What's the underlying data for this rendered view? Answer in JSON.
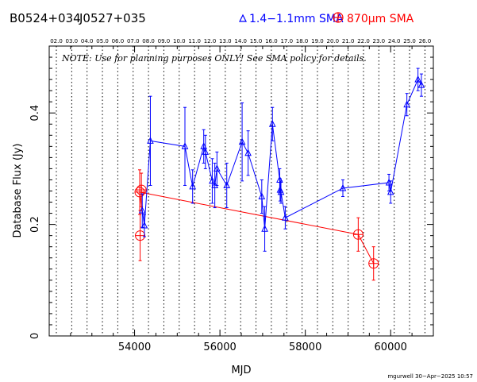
{
  "header": {
    "source_name": "B0524+034",
    "alt_name": "J0527+035",
    "legend_blue": "1.4−1.1mm SMA",
    "legend_red": "870μm SMA"
  },
  "note": "NOTE: Use for planning purposes ONLY!  See SMA policy for details.",
  "credit": "mgurwell 30−Apr−2025 10:57",
  "colors": {
    "blue": "#0000ff",
    "red": "#ff0000",
    "axis": "#000000"
  },
  "chart_data": {
    "type": "scatter",
    "xlabel": "MJD",
    "ylabel": "Database Flux (Jy)",
    "xlim": [
      52000,
      61000
    ],
    "ylim": [
      0,
      0.52
    ],
    "xticks": [
      54000,
      56000,
      58000,
      60000
    ],
    "xtick_labels": [
      "54000",
      "56000",
      "58000",
      "60000"
    ],
    "yticks": [
      0,
      0.2,
      0.4
    ],
    "ytick_labels": [
      "0",
      "0.2",
      "0.4"
    ],
    "top_axis_labels": [
      "02.0",
      "03.0",
      "04.0",
      "05.0",
      "06.0",
      "07.0",
      "08.0",
      "09.0",
      "10.0",
      "11.0",
      "12.0",
      "13.0",
      "14.0",
      "15.0",
      "16.0",
      "17.0",
      "18.0",
      "19.0",
      "20.0",
      "21.0",
      "22.0",
      "23.0",
      "24.0",
      "25.0",
      "26.0"
    ],
    "grid": "dotted vertical lines at each top-axis year",
    "series": [
      {
        "name": "1.4−1.1mm SMA",
        "marker": "triangle",
        "color": "#0000ff",
        "points": [
          {
            "x": 54180,
            "y": 0.225,
            "err": 0.03
          },
          {
            "x": 54230,
            "y": 0.198,
            "err": 0.02
          },
          {
            "x": 54370,
            "y": 0.35,
            "err": 0.08
          },
          {
            "x": 55180,
            "y": 0.34,
            "err": 0.07
          },
          {
            "x": 55360,
            "y": 0.268,
            "err": 0.03
          },
          {
            "x": 55620,
            "y": 0.34,
            "err": 0.03
          },
          {
            "x": 55660,
            "y": 0.33,
            "err": 0.03
          },
          {
            "x": 55820,
            "y": 0.278,
            "err": 0.04
          },
          {
            "x": 55880,
            "y": 0.27,
            "err": 0.04
          },
          {
            "x": 55930,
            "y": 0.3,
            "err": 0.03
          },
          {
            "x": 56160,
            "y": 0.27,
            "err": 0.04
          },
          {
            "x": 56520,
            "y": 0.348,
            "err": 0.07
          },
          {
            "x": 56660,
            "y": 0.328,
            "err": 0.04
          },
          {
            "x": 56980,
            "y": 0.25,
            "err": 0.03
          },
          {
            "x": 57050,
            "y": 0.192,
            "err": 0.04
          },
          {
            "x": 57230,
            "y": 0.38,
            "err": 0.03
          },
          {
            "x": 57400,
            "y": 0.28,
            "err": 0.02
          },
          {
            "x": 57410,
            "y": 0.262,
            "err": 0.02
          },
          {
            "x": 57430,
            "y": 0.258,
            "err": 0.02
          },
          {
            "x": 57530,
            "y": 0.212,
            "err": 0.02
          },
          {
            "x": 58880,
            "y": 0.265,
            "err": 0.015
          },
          {
            "x": 59960,
            "y": 0.275,
            "err": 0.015
          },
          {
            "x": 60000,
            "y": 0.258,
            "err": 0.02
          },
          {
            "x": 60380,
            "y": 0.415,
            "err": 0.02
          },
          {
            "x": 60640,
            "y": 0.46,
            "err": 0.02
          },
          {
            "x": 60720,
            "y": 0.45,
            "err": 0.02
          }
        ]
      },
      {
        "name": "870μm SMA",
        "marker": "circle-plus",
        "color": "#ff0000",
        "points": [
          {
            "x": 54120,
            "y": 0.258,
            "err": 0.04
          },
          {
            "x": 54160,
            "y": 0.262,
            "err": 0.03
          },
          {
            "x": 54130,
            "y": 0.18,
            "err": 0.045
          },
          {
            "x": 59240,
            "y": 0.182,
            "err": 0.03
          },
          {
            "x": 59600,
            "y": 0.13,
            "err": 0.03
          }
        ]
      }
    ],
    "blue_line_order": [
      2,
      3,
      4,
      5,
      6,
      7,
      8,
      9,
      10,
      11,
      12,
      13,
      14,
      15,
      16,
      17,
      18,
      19,
      20,
      21,
      22,
      23,
      24,
      25
    ],
    "red_line_pairs": [
      [
        0,
        3
      ],
      [
        3,
        4
      ]
    ]
  }
}
